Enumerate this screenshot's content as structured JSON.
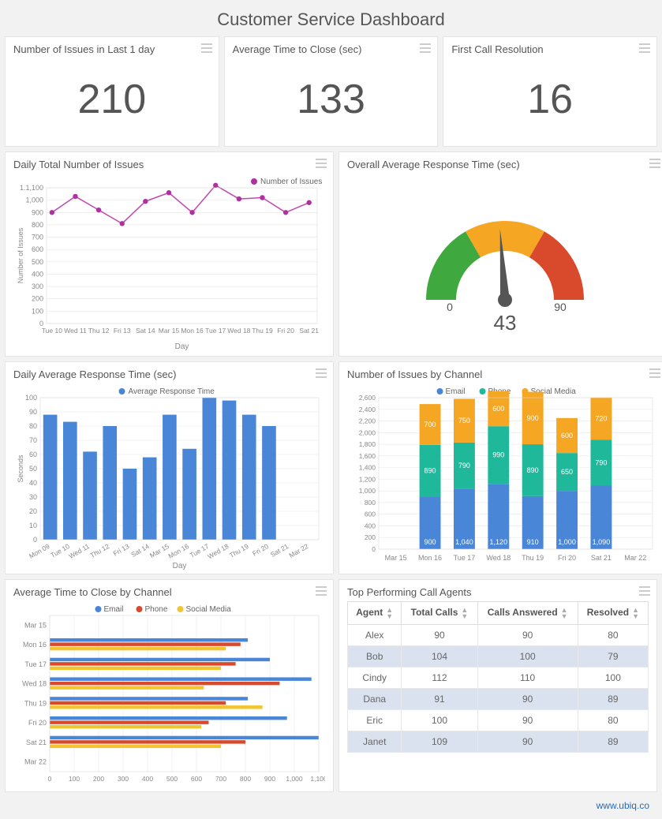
{
  "title": "Customer Service Dashboard",
  "footer": "www.ubiq.co",
  "colors": {
    "page_bg": "#f2f2f2",
    "card_bg": "#ffffff",
    "border": "#e5e5e5",
    "text": "#555555",
    "muted": "#888888"
  },
  "kpis": [
    {
      "label": "Number of Issues in Last 1 day",
      "value": "210"
    },
    {
      "label": "Average Time to Close (sec)",
      "value": "133"
    },
    {
      "label": "First Call Resolution",
      "value": "16"
    }
  ],
  "daily_issues": {
    "title": "Daily Total Number of Issues",
    "type": "line",
    "legend": "Number of Issues",
    "marker_color": "#b030a0",
    "line_color": "#c048b0",
    "grid_color": "#e8e8e8",
    "x_label": "Day",
    "y_label": "Number of Issues",
    "ylim": [
      0,
      1100
    ],
    "ytick_step": 100,
    "categories": [
      "Tue 10",
      "Wed 11",
      "Thu 12",
      "Fri 13",
      "Sat 14",
      "Mar 15",
      "Mon 16",
      "Tue 17",
      "Wed 18",
      "Thu 19",
      "Fri 20",
      "Sat 21"
    ],
    "values": [
      900,
      1030,
      920,
      810,
      990,
      1060,
      900,
      1120,
      1010,
      1020,
      900,
      980
    ]
  },
  "gauge": {
    "title": "Overall Average Response Time (sec)",
    "type": "gauge",
    "min": 0,
    "max": 90,
    "value": 43,
    "min_label": "0",
    "max_label": "90",
    "value_label": "43",
    "segments": [
      {
        "from": 0,
        "to": 30,
        "color": "#3fa93f"
      },
      {
        "from": 30,
        "to": 60,
        "color": "#f5a623"
      },
      {
        "from": 60,
        "to": 90,
        "color": "#d84a2b"
      }
    ],
    "needle_color": "#555555"
  },
  "daily_response": {
    "title": "Daily Average Response Time (sec)",
    "type": "bar",
    "legend": "Average Response Time",
    "bar_color": "#4a86d8",
    "grid_color": "#e8e8e8",
    "x_label": "Day",
    "y_label": "Seconds",
    "ylim": [
      0,
      100
    ],
    "ytick_step": 10,
    "categories": [
      "Mon 09",
      "Tue 10",
      "Wed 11",
      "Thu 12",
      "Fri 13",
      "Sat 14",
      "Mar 15",
      "Mon 16",
      "Tue 17",
      "Wed 18",
      "Thu 19",
      "Fri 20",
      "Sat 21",
      "Mar 22"
    ],
    "values": [
      88,
      83,
      62,
      80,
      50,
      58,
      88,
      64,
      100,
      98,
      88,
      80,
      null,
      null
    ],
    "visible_to": 12
  },
  "issues_by_channel": {
    "title": "Number of Issues by Channel",
    "type": "stacked_bar",
    "grid_color": "#e8e8e8",
    "ylim": [
      0,
      2600
    ],
    "ytick_step": 200,
    "categories": [
      "Mar 15",
      "Mon 16",
      "Tue 17",
      "Wed 18",
      "Thu 19",
      "Fri 20",
      "Sat 21",
      "Mar 22"
    ],
    "series": [
      {
        "name": "Email",
        "color": "#4a86d8",
        "values": [
          null,
          900,
          1040,
          1120,
          910,
          1000,
          1090,
          null
        ]
      },
      {
        "name": "Phone",
        "color": "#20b89a",
        "values": [
          null,
          890,
          790,
          990,
          890,
          650,
          790,
          null
        ]
      },
      {
        "name": "Social Media",
        "color": "#f5a623",
        "values": [
          null,
          700,
          750,
          600,
          900,
          600,
          720,
          null
        ]
      }
    ],
    "bar_labels_font": 9
  },
  "close_by_channel": {
    "title": "Average Time to Close by Channel",
    "type": "grouped_bar_horizontal",
    "grid_color": "#e8e8e8",
    "xlim": [
      0,
      1100
    ],
    "xtick_step": 100,
    "categories": [
      "Mar 15",
      "Mon 16",
      "Tue 17",
      "Wed 18",
      "Thu 19",
      "Fri 20",
      "Sat 21",
      "Mar 22"
    ],
    "series": [
      {
        "name": "Email",
        "color": "#4a86d8",
        "values": [
          null,
          810,
          900,
          1070,
          810,
          970,
          1100,
          null
        ]
      },
      {
        "name": "Phone",
        "color": "#d84a2b",
        "values": [
          null,
          780,
          760,
          940,
          720,
          650,
          800,
          null
        ]
      },
      {
        "name": "Social Media",
        "color": "#f2c430",
        "values": [
          null,
          720,
          700,
          630,
          870,
          620,
          700,
          null
        ]
      }
    ]
  },
  "agents_table": {
    "title": "Top Performing Call Agents",
    "columns": [
      "Agent",
      "Total Calls",
      "Calls Answered",
      "Resolved"
    ],
    "rows": [
      [
        "Alex",
        "90",
        "90",
        "80"
      ],
      [
        "Bob",
        "104",
        "100",
        "79"
      ],
      [
        "Cindy",
        "112",
        "110",
        "100"
      ],
      [
        "Dana",
        "91",
        "90",
        "89"
      ],
      [
        "Eric",
        "100",
        "90",
        "80"
      ],
      [
        "Janet",
        "109",
        "90",
        "89"
      ]
    ]
  }
}
